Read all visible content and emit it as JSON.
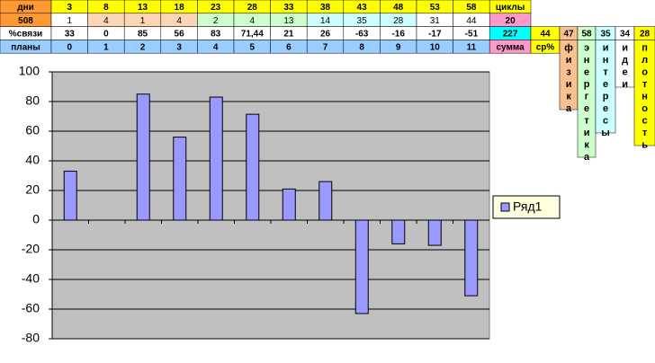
{
  "table": {
    "rows": [
      [
        "дни",
        3,
        8,
        13,
        18,
        23,
        28,
        33,
        38,
        43,
        48,
        53,
        58,
        "циклы"
      ],
      [
        508,
        1,
        4,
        1,
        4,
        2,
        4,
        13,
        14,
        35,
        28,
        31,
        44,
        20
      ],
      [
        "%связи",
        33,
        0,
        85,
        56,
        83,
        "71,44",
        21,
        26,
        -63,
        -16,
        -17,
        -51,
        227,
        44,
        47,
        58,
        35,
        34,
        28
      ],
      [
        "планы",
        0,
        1,
        2,
        3,
        4,
        5,
        6,
        7,
        8,
        9,
        10,
        11,
        "сумма",
        "ср%"
      ]
    ],
    "vertical_headers": [
      "физика",
      "энергетика",
      "интересы",
      "идеи",
      "плотность"
    ]
  },
  "chart_data": {
    "type": "bar",
    "categories": [
      null,
      null,
      null,
      null,
      null,
      null,
      null,
      null,
      null,
      null,
      null,
      null
    ],
    "series": [
      {
        "name": "Ряд1",
        "color": "#9999ff",
        "values": [
          33,
          0,
          85,
          56,
          83,
          71.44,
          21,
          26,
          -63,
          -16,
          -17,
          -51
        ]
      }
    ],
    "ylim": [
      -80,
      100
    ],
    "yticks": [
      -80,
      -60,
      -40,
      -20,
      0,
      20,
      40,
      60,
      80,
      100
    ],
    "grid": true,
    "legend": "right"
  }
}
